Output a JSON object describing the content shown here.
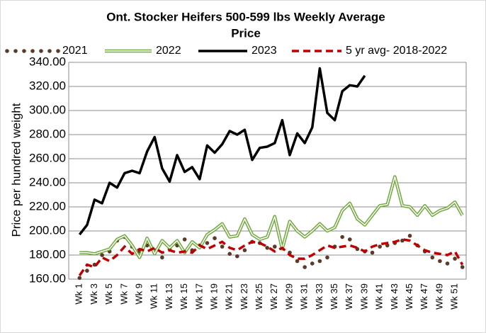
{
  "chart_data": {
    "type": "line",
    "title": [
      "Ont. Stocker Heifers 500-599 lbs Weekly Average",
      "Price"
    ],
    "y_label": "Price per hundred weight",
    "categories": [
      "Wk 1",
      null,
      "Wk 3",
      null,
      "Wk 5",
      null,
      "Wk 7",
      null,
      "Wk 9",
      null,
      "Wk 11",
      null,
      "Wk 13",
      null,
      "Wk 15",
      null,
      "Wk 17",
      null,
      "Wk 19",
      null,
      "Wk 21",
      null,
      "Wk 23",
      null,
      "Wk 25",
      null,
      "Wk 27",
      null,
      "Wk 29",
      null,
      "Wk 31",
      null,
      "Wk 33",
      null,
      "Wk 35",
      null,
      "Wk 37",
      null,
      "Wk 39",
      null,
      "Wk 41",
      null,
      "Wk 43",
      null,
      "Wk 45",
      null,
      "Wk 47",
      null,
      "Wk 49",
      null,
      "Wk 51",
      null
    ],
    "ylim": [
      160,
      340
    ],
    "yticks": [
      {
        "value": 160,
        "label": "160.00"
      },
      {
        "value": 180,
        "label": "180.00"
      },
      {
        "value": 200,
        "label": "200.00"
      },
      {
        "value": 220,
        "label": "220.00"
      },
      {
        "value": 240,
        "label": "240.00"
      },
      {
        "value": 260,
        "label": "260.00"
      },
      {
        "value": 280,
        "label": "280.00"
      },
      {
        "value": 300,
        "label": "300.00"
      },
      {
        "value": 320,
        "label": "320.00"
      },
      {
        "value": 340,
        "label": "340.00"
      }
    ],
    "grid": true,
    "legend": "top",
    "series": [
      {
        "name": "2021",
        "color": "#5b3a29",
        "style": "dots",
        "values": [
          161,
          167,
          172,
          180,
          183,
          192,
          195,
          187,
          183,
          188,
          184,
          178,
          185,
          188,
          193,
          184,
          188,
          190,
          194,
          187,
          181,
          179,
          184,
          191,
          190,
          186,
          187,
          188,
          182,
          175,
          170,
          173,
          175,
          178,
          187,
          195,
          193,
          185,
          183,
          182,
          187,
          188,
          190,
          192,
          196,
          188,
          183,
          178,
          175,
          173,
          177,
          170
        ]
      },
      {
        "name": "2022",
        "color": "#70a83c",
        "style": "double",
        "values": [
          182,
          182,
          181,
          183,
          185,
          193,
          196,
          188,
          178,
          194,
          181,
          192,
          186,
          192,
          182,
          191,
          186,
          197,
          201,
          206,
          195,
          196,
          210,
          197,
          193,
          195,
          212,
          185,
          208,
          200,
          195,
          200,
          206,
          200,
          203,
          217,
          223,
          210,
          205,
          213,
          221,
          222,
          245,
          221,
          220,
          213,
          221,
          213,
          217,
          219,
          224,
          213
        ]
      },
      {
        "name": "2023",
        "color": "#000000",
        "style": "solid",
        "values": [
          197,
          205,
          226,
          223,
          240,
          236,
          248,
          250,
          248,
          266,
          278,
          252,
          241,
          263,
          249,
          253,
          243,
          271,
          265,
          272,
          283,
          280,
          284,
          259,
          269,
          270,
          273,
          292,
          263,
          281,
          273,
          286,
          335,
          298,
          292,
          316,
          321,
          320,
          329,
          null,
          null,
          null,
          null,
          null,
          null,
          null,
          null,
          null,
          null,
          null,
          null,
          null
        ]
      },
      {
        "name": "5 yr avg- 2018-2022",
        "color": "#c00000",
        "style": "dash",
        "values": [
          163,
          172,
          170,
          178,
          175,
          180,
          187,
          181,
          185,
          183,
          186,
          182,
          184,
          182,
          183,
          182,
          188,
          185,
          188,
          191,
          186,
          184,
          188,
          191,
          190,
          187,
          183,
          186,
          180,
          177,
          177,
          180,
          184,
          188,
          186,
          187,
          188,
          186,
          183,
          187,
          189,
          190,
          191,
          193,
          192,
          188,
          184,
          182,
          181,
          180,
          183,
          172
        ]
      }
    ]
  }
}
